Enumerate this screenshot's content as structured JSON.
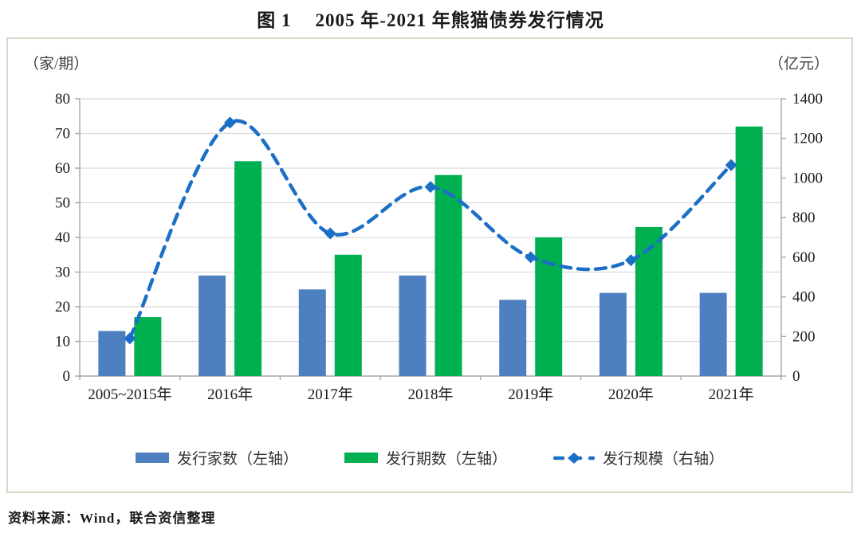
{
  "figure": {
    "label": "图 1",
    "title": "2005 年-2021 年熊猫债券发行情况"
  },
  "source": "资料来源：Wind，联合资信整理",
  "chart_data": {
    "type": "bar",
    "subtype": "grouped-bars-with-smoothed-dashed-line",
    "title": "图 1 2005 年-2021 年熊猫债券发行情况",
    "categories": [
      "2005~2015年",
      "2016年",
      "2017年",
      "2018年",
      "2019年",
      "2020年",
      "2021年"
    ],
    "series": [
      {
        "name": "发行家数（左轴）",
        "type": "bar",
        "axis": "left",
        "color": "#4e80c1",
        "values": [
          13,
          29,
          25,
          29,
          22,
          24,
          24
        ]
      },
      {
        "name": "发行期数（左轴）",
        "type": "bar",
        "axis": "left",
        "color": "#00b050",
        "values": [
          17,
          62,
          35,
          58,
          40,
          43,
          72
        ]
      },
      {
        "name": "发行规模（右轴）",
        "type": "line",
        "axis": "right",
        "color": "#1b6fc7",
        "line_style": "dashed",
        "marker": "diamond",
        "values": [
          190,
          1280,
          720,
          955,
          600,
          585,
          1065
        ]
      }
    ],
    "left_axis": {
      "unit": "（家/期）",
      "min": 0,
      "max": 80,
      "step": 10,
      "tick_labels": [
        "0",
        "10",
        "20",
        "30",
        "40",
        "50",
        "60",
        "70",
        "80"
      ]
    },
    "right_axis": {
      "unit": "（亿元）",
      "min": 0,
      "max": 1400,
      "step": 200,
      "tick_labels": [
        "0",
        "200",
        "400",
        "600",
        "800",
        "1000",
        "1200",
        "1400"
      ]
    },
    "grid": true,
    "legend_position": "bottom",
    "colors": {
      "grid": "#d9d9d9",
      "axis": "#a6a6a6",
      "frame": "#ddd5c6",
      "text": "#1a1a1a"
    }
  }
}
